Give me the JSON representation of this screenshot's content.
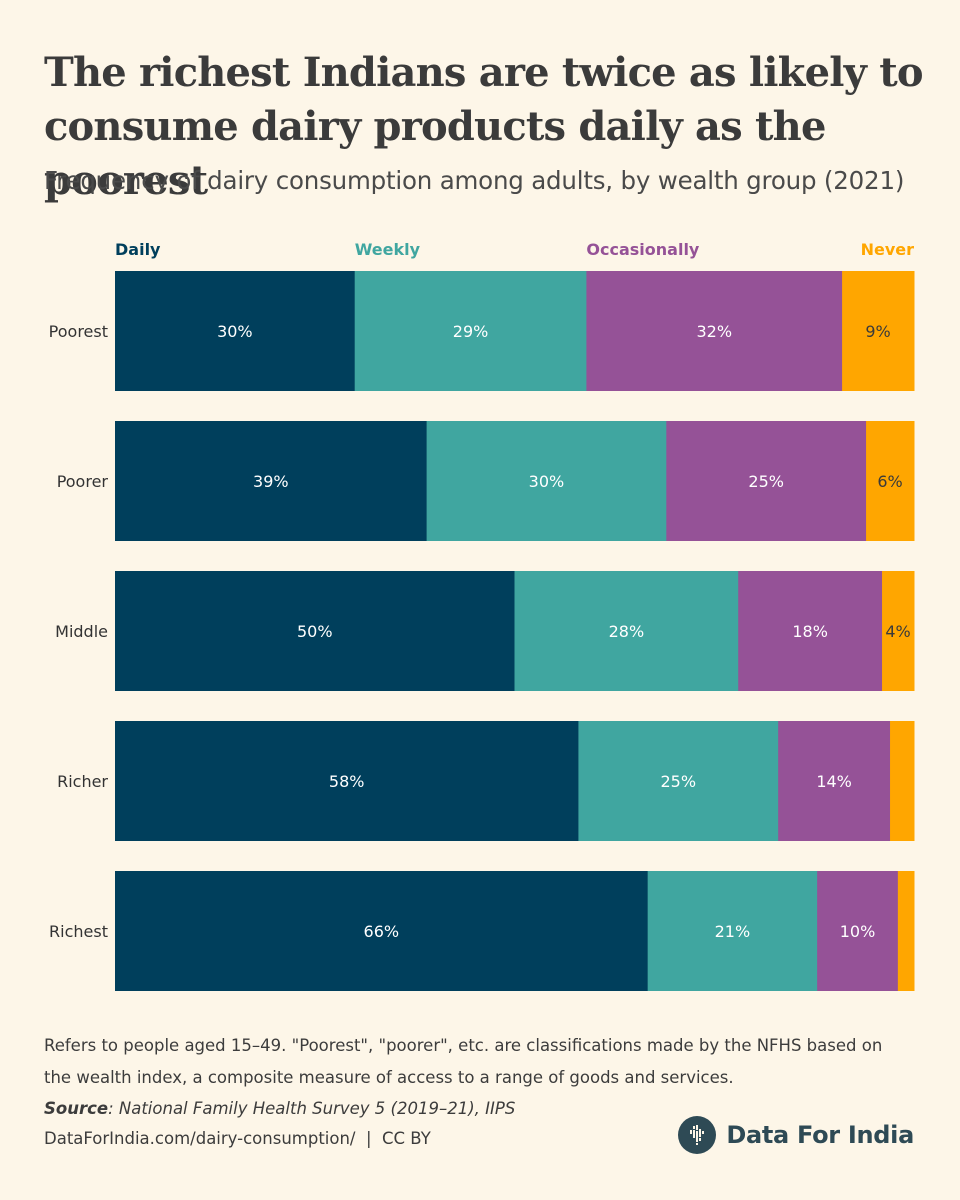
{
  "header": {
    "title": "The richest Indians are twice as likely to consume dairy products daily as the poorest",
    "subtitle": "Frequency of dairy consumption among adults, by wealth group (2021)"
  },
  "chart_data": {
    "type": "bar",
    "orientation": "horizontal",
    "stacked": true,
    "percent": true,
    "legend_position": "top",
    "grid": false,
    "categories": [
      "Poorest",
      "Poorer",
      "Middle",
      "Richer",
      "Richest"
    ],
    "series": [
      {
        "name": "Daily",
        "color": "#003f5c",
        "values": [
          30,
          39,
          50,
          58,
          66
        ],
        "labels": [
          "30%",
          "39%",
          "50%",
          "58%",
          "66%"
        ]
      },
      {
        "name": "Weekly",
        "color": "#40a6a0",
        "values": [
          29,
          30,
          28,
          25,
          21
        ],
        "labels": [
          "29%",
          "30%",
          "28%",
          "25%",
          "21%"
        ]
      },
      {
        "name": "Occasionally",
        "color": "#955297",
        "values": [
          32,
          25,
          18,
          14,
          10
        ],
        "labels": [
          "32%",
          "25%",
          "18%",
          "14%",
          "10%"
        ]
      },
      {
        "name": "Never",
        "color": "#ffa600",
        "values": [
          9,
          6,
          4,
          3,
          2
        ],
        "labels": [
          "9%",
          "6%",
          "4%",
          "",
          ""
        ]
      }
    ],
    "xlim": [
      0,
      100
    ]
  },
  "footer": {
    "note": "Refers to people aged 15–49. \"Poorest\", \"poorer\", etc. are classifications made by the NFHS based on the wealth index, a composite measure of access to a range of goods and services.",
    "source_label": "Source",
    "source_text": ": National Family Health Survey 5 (2019–21), IIPS",
    "url": "DataForIndia.com/dairy-consumption/  |  CC BY",
    "brand": "Data For India",
    "brand_icon": "india-map-icon"
  }
}
